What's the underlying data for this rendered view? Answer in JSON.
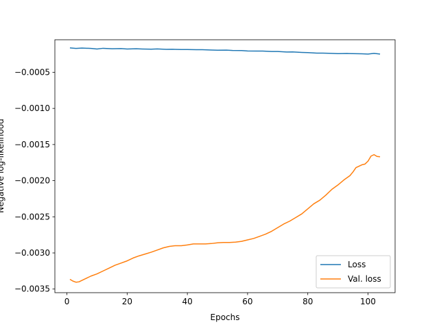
{
  "chart_data": {
    "type": "line",
    "title": "",
    "xlabel": "Epochs",
    "ylabel": "Negative log-likelihood",
    "xlim": [
      -4,
      109
    ],
    "ylim": [
      -0.00355,
      -5e-05
    ],
    "xticks": [
      0,
      20,
      40,
      60,
      80,
      100
    ],
    "yticks": [
      -0.0005,
      -0.001,
      -0.0015,
      -0.002,
      -0.0025,
      -0.003,
      -0.0035
    ],
    "ytick_labels": [
      "−0.0005",
      "−0.0010",
      "−0.0015",
      "−0.0020",
      "−0.0025",
      "−0.0030",
      "−0.0035"
    ],
    "xtick_labels": [
      "0",
      "20",
      "40",
      "60",
      "80",
      "100"
    ],
    "grid": false,
    "legend_position": "bottom-right",
    "series": [
      {
        "name": "Loss",
        "color": "#1f77b4",
        "x": [
          1,
          3,
          5,
          8,
          10,
          12,
          15,
          18,
          20,
          23,
          25,
          28,
          30,
          33,
          35,
          38,
          40,
          43,
          45,
          48,
          50,
          53,
          55,
          58,
          60,
          63,
          65,
          68,
          70,
          73,
          75,
          78,
          80,
          83,
          85,
          88,
          90,
          93,
          95,
          98,
          100,
          102,
          104
        ],
        "y": [
          -0.000163,
          -0.00017,
          -0.000165,
          -0.00017,
          -0.000178,
          -0.000168,
          -0.000175,
          -0.000172,
          -0.000178,
          -0.000175,
          -0.000178,
          -0.00018,
          -0.000177,
          -0.000183,
          -0.000182,
          -0.000185,
          -0.000185,
          -0.000188,
          -0.000188,
          -0.000192,
          -0.000195,
          -0.000193,
          -0.000198,
          -0.0002,
          -0.000205,
          -0.000207,
          -0.000207,
          -0.000213,
          -0.000213,
          -0.00022,
          -0.000218,
          -0.000225,
          -0.000228,
          -0.000235,
          -0.000235,
          -0.000238,
          -0.000242,
          -0.00024,
          -0.000242,
          -0.000245,
          -0.000248,
          -0.000238,
          -0.000248
        ]
      },
      {
        "name": "Val. loss",
        "color": "#ff7f0e",
        "x": [
          1,
          2,
          3,
          4,
          6,
          8,
          10,
          12,
          14,
          16,
          18,
          20,
          22,
          24,
          26,
          28,
          30,
          32,
          34,
          36,
          38,
          40,
          42,
          44,
          46,
          48,
          50,
          52,
          54,
          56,
          58,
          60,
          62,
          64,
          66,
          68,
          70,
          72,
          74,
          76,
          78,
          80,
          82,
          84,
          86,
          88,
          90,
          92,
          94,
          95,
          96,
          98,
          99,
          100,
          101,
          102,
          103,
          104
        ],
        "y": [
          -0.003365,
          -0.00339,
          -0.003405,
          -0.0034,
          -0.00336,
          -0.00332,
          -0.00329,
          -0.00325,
          -0.00321,
          -0.00317,
          -0.00314,
          -0.00311,
          -0.00307,
          -0.00304,
          -0.003015,
          -0.00299,
          -0.00296,
          -0.00293,
          -0.00291,
          -0.0029,
          -0.0029,
          -0.00289,
          -0.002875,
          -0.002875,
          -0.002875,
          -0.00287,
          -0.00286,
          -0.002855,
          -0.002855,
          -0.00285,
          -0.00284,
          -0.00282,
          -0.0028,
          -0.00277,
          -0.00274,
          -0.0027,
          -0.00265,
          -0.0026,
          -0.00256,
          -0.00251,
          -0.00246,
          -0.00239,
          -0.00232,
          -0.00227,
          -0.0022,
          -0.00212,
          -0.00206,
          -0.00199,
          -0.00193,
          -0.00188,
          -0.00182,
          -0.00178,
          -0.00177,
          -0.00173,
          -0.00166,
          -0.00164,
          -0.001665,
          -0.00167
        ]
      }
    ]
  }
}
